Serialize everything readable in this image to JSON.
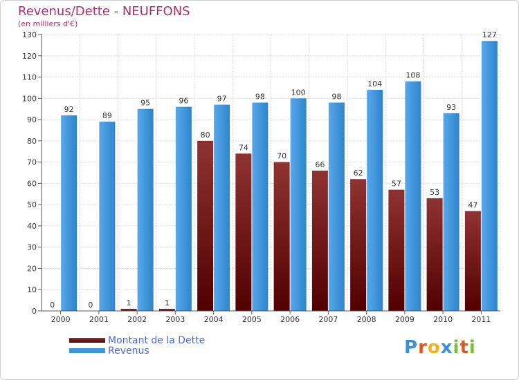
{
  "header": {
    "title": "Revenus/Dette - NEUFFONS",
    "subtitle": "(en milliers d'€)"
  },
  "legend": [
    {
      "label": "Montant de la Dette",
      "color": "#6b0f0f"
    },
    {
      "label": "Revenus",
      "color": "#3d93dc"
    }
  ],
  "brand": {
    "text": "Proxiti",
    "letters": [
      "P",
      "r",
      "o",
      "x",
      "i",
      "t",
      "i"
    ],
    "colors": [
      "#3f8fd8",
      "#e0561f",
      "#f1b41d",
      "#3f8fd8",
      "#7bbd3a",
      "#e0561f",
      "#7bbd3a"
    ]
  },
  "chart_data": {
    "type": "bar",
    "title": "Revenus/Dette - NEUFFONS",
    "subtitle": "(en milliers d'€)",
    "categories": [
      "2000",
      "2001",
      "2002",
      "2003",
      "2004",
      "2005",
      "2006",
      "2007",
      "2008",
      "2009",
      "2010",
      "2011"
    ],
    "series": [
      {
        "name": "Montant de la Dette",
        "color": "#7a1c1c",
        "values": [
          0,
          0,
          1,
          1,
          80,
          74,
          70,
          66,
          62,
          57,
          53,
          47
        ]
      },
      {
        "name": "Revenus",
        "color": "#3d93dc",
        "values": [
          92,
          89,
          95,
          96,
          97,
          98,
          100,
          98,
          104,
          108,
          93,
          127
        ]
      }
    ],
    "ylim": [
      0,
      130
    ],
    "yticks": [
      0,
      10,
      20,
      30,
      40,
      50,
      60,
      70,
      80,
      90,
      100,
      110,
      120,
      130
    ],
    "grid": true,
    "legend_position": "bottom-left"
  }
}
